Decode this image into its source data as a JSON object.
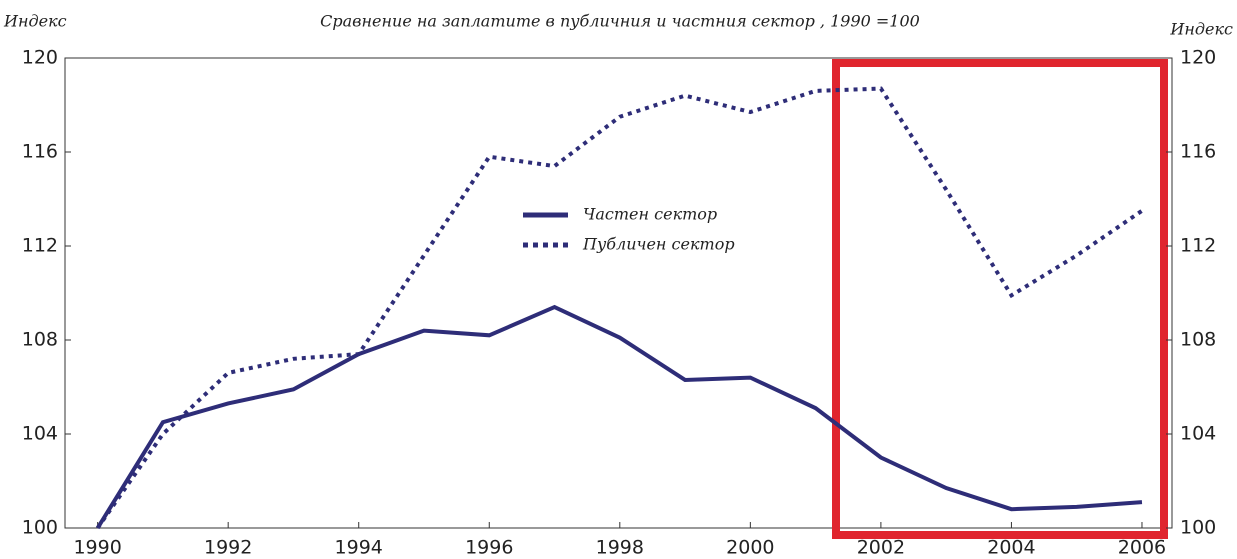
{
  "chart_data": {
    "type": "line",
    "title": "Сравнение на заплатите в публичния и частния сектор , 1990 =100",
    "ylabel": "Индекс",
    "y2label": "Индекс",
    "x": [
      1990,
      1991,
      1992,
      1993,
      1994,
      1995,
      1996,
      1997,
      1998,
      1999,
      2000,
      2001,
      2002,
      2003,
      2004,
      2005,
      2006
    ],
    "series": [
      {
        "name": "Частен сектор",
        "color": "#2e2d78",
        "style": "solid",
        "values": [
          100,
          104.5,
          105.3,
          105.9,
          107.4,
          108.4,
          108.2,
          109.4,
          108.1,
          106.3,
          106.4,
          105.1,
          103,
          101.7,
          100.8,
          100.9,
          101.1
        ]
      },
      {
        "name": "Публичен сектор",
        "color": "#2e2d78",
        "style": "dotted",
        "values": [
          100,
          104,
          106.6,
          107.2,
          107.4,
          111.6,
          115.8,
          115.4,
          117.5,
          118.4,
          117.7,
          118.6,
          118.7,
          114.4,
          109.9,
          111.6,
          113.5
        ]
      }
    ],
    "xlim": [
      1989.5,
      2006.46
    ],
    "xticks": [
      1990,
      1992,
      1994,
      1996,
      1998,
      2000,
      2002,
      2004,
      2006
    ],
    "ylim": [
      100,
      120
    ],
    "yticks": [
      100,
      104,
      108,
      112,
      116,
      120
    ],
    "y2lim": [
      100,
      120
    ],
    "y2ticks": [
      100,
      104,
      108,
      112,
      116,
      120
    ],
    "grid": false
  }
}
